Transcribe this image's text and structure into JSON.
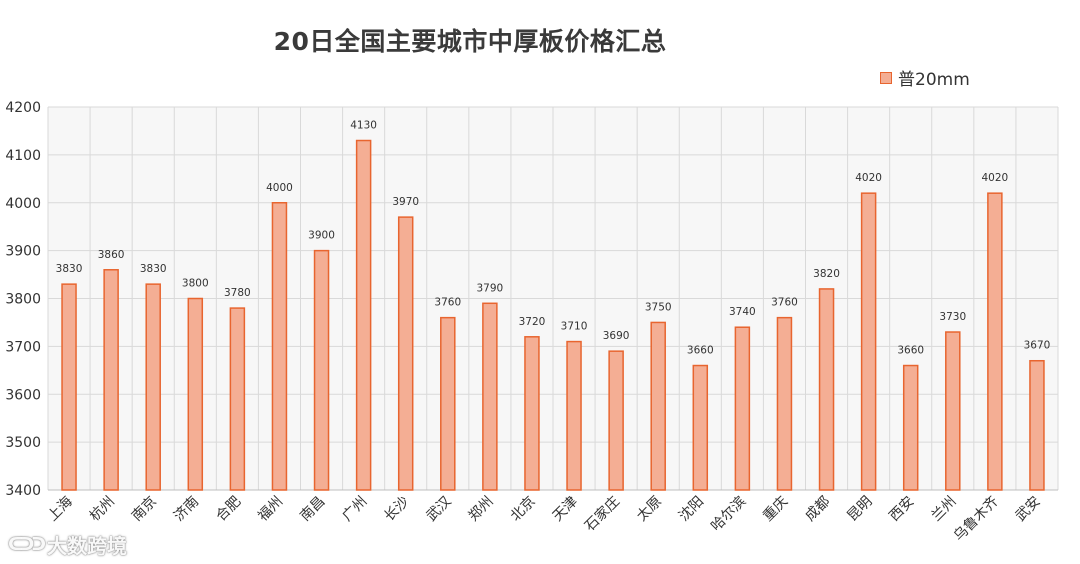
{
  "chart_data": {
    "type": "bar",
    "title": "20日全国主要城市中厚板价格汇总",
    "xlabel": "",
    "ylabel": "",
    "ylim": [
      3400,
      4200
    ],
    "yticks": [
      3400,
      3500,
      3600,
      3700,
      3800,
      3900,
      4000,
      4100,
      4200
    ],
    "grid": true,
    "legend_position": "top-right",
    "colors": {
      "fill": "#f4ae94",
      "stroke": "#e8652f",
      "grid": "#d9d9d9",
      "plot_bg": "#f7f7f7"
    },
    "categories": [
      "上海",
      "杭州",
      "南京",
      "济南",
      "合肥",
      "福州",
      "南昌",
      "广州",
      "长沙",
      "武汉",
      "郑州",
      "北京",
      "天津",
      "石家庄",
      "太原",
      "沈阳",
      "哈尔滨",
      "重庆",
      "成都",
      "昆明",
      "西安",
      "兰州",
      "乌鲁木齐",
      "武安"
    ],
    "series": [
      {
        "name": "普20mm",
        "values": [
          3830,
          3860,
          3830,
          3800,
          3780,
          4000,
          3900,
          4130,
          3970,
          3760,
          3790,
          3720,
          3710,
          3690,
          3750,
          3660,
          3740,
          3760,
          3820,
          4020,
          3660,
          3730,
          4020,
          3670
        ]
      }
    ]
  },
  "watermark": {
    "logo": "ᑕᑐᑐ",
    "text": "大数跨境"
  }
}
